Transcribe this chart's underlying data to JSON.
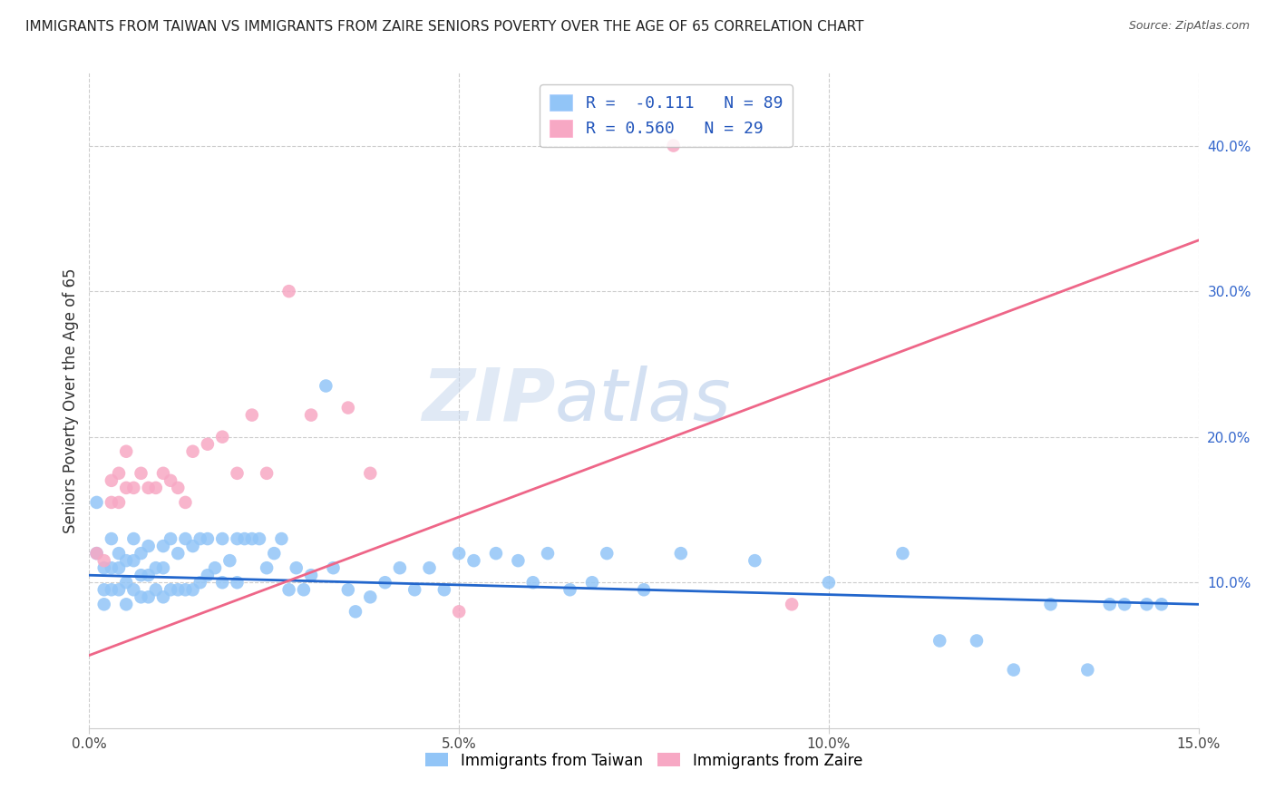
{
  "title": "IMMIGRANTS FROM TAIWAN VS IMMIGRANTS FROM ZAIRE SENIORS POVERTY OVER THE AGE OF 65 CORRELATION CHART",
  "source": "Source: ZipAtlas.com",
  "ylabel": "Seniors Poverty Over the Age of 65",
  "xlim": [
    0.0,
    0.15
  ],
  "ylim": [
    0.0,
    0.45
  ],
  "xticks": [
    0.0,
    0.05,
    0.1,
    0.15
  ],
  "xtick_labels": [
    "0.0%",
    "5.0%",
    "10.0%",
    "15.0%"
  ],
  "yticks": [
    0.1,
    0.2,
    0.3,
    0.4
  ],
  "ytick_labels": [
    "10.0%",
    "20.0%",
    "30.0%",
    "40.0%"
  ],
  "taiwan_color": "#92C5F7",
  "zaire_color": "#F7A8C4",
  "taiwan_line_color": "#2266CC",
  "zaire_line_color": "#EE6688",
  "taiwan_R": -0.111,
  "taiwan_N": 89,
  "zaire_R": 0.56,
  "zaire_N": 29,
  "taiwan_line_x0": 0.0,
  "taiwan_line_y0": 0.105,
  "taiwan_line_x1": 0.15,
  "taiwan_line_y1": 0.085,
  "zaire_line_x0": 0.0,
  "zaire_line_y0": 0.05,
  "zaire_line_x1": 0.15,
  "zaire_line_y1": 0.335,
  "legend_taiwan": "R =  -0.111   N = 89",
  "legend_zaire": "R = 0.560   N = 29",
  "legend_label_taiwan": "Immigrants from Taiwan",
  "legend_label_zaire": "Immigrants from Zaire",
  "watermark_zip": "ZIP",
  "watermark_atlas": "atlas",
  "taiwan_x": [
    0.001,
    0.001,
    0.002,
    0.002,
    0.002,
    0.003,
    0.003,
    0.003,
    0.004,
    0.004,
    0.004,
    0.005,
    0.005,
    0.005,
    0.006,
    0.006,
    0.006,
    0.007,
    0.007,
    0.007,
    0.008,
    0.008,
    0.008,
    0.009,
    0.009,
    0.01,
    0.01,
    0.01,
    0.011,
    0.011,
    0.012,
    0.012,
    0.013,
    0.013,
    0.014,
    0.014,
    0.015,
    0.015,
    0.016,
    0.016,
    0.017,
    0.018,
    0.018,
    0.019,
    0.02,
    0.02,
    0.021,
    0.022,
    0.023,
    0.024,
    0.025,
    0.026,
    0.027,
    0.028,
    0.029,
    0.03,
    0.032,
    0.033,
    0.035,
    0.036,
    0.038,
    0.04,
    0.042,
    0.044,
    0.046,
    0.048,
    0.05,
    0.052,
    0.055,
    0.058,
    0.06,
    0.062,
    0.065,
    0.068,
    0.07,
    0.075,
    0.08,
    0.09,
    0.1,
    0.11,
    0.115,
    0.12,
    0.125,
    0.13,
    0.135,
    0.138,
    0.14,
    0.143,
    0.145
  ],
  "taiwan_y": [
    0.155,
    0.12,
    0.11,
    0.095,
    0.085,
    0.13,
    0.11,
    0.095,
    0.12,
    0.11,
    0.095,
    0.115,
    0.1,
    0.085,
    0.13,
    0.115,
    0.095,
    0.12,
    0.105,
    0.09,
    0.125,
    0.105,
    0.09,
    0.11,
    0.095,
    0.125,
    0.11,
    0.09,
    0.13,
    0.095,
    0.12,
    0.095,
    0.13,
    0.095,
    0.125,
    0.095,
    0.13,
    0.1,
    0.13,
    0.105,
    0.11,
    0.13,
    0.1,
    0.115,
    0.13,
    0.1,
    0.13,
    0.13,
    0.13,
    0.11,
    0.12,
    0.13,
    0.095,
    0.11,
    0.095,
    0.105,
    0.235,
    0.11,
    0.095,
    0.08,
    0.09,
    0.1,
    0.11,
    0.095,
    0.11,
    0.095,
    0.12,
    0.115,
    0.12,
    0.115,
    0.1,
    0.12,
    0.095,
    0.1,
    0.12,
    0.095,
    0.12,
    0.115,
    0.1,
    0.12,
    0.06,
    0.06,
    0.04,
    0.085,
    0.04,
    0.085,
    0.085,
    0.085,
    0.085
  ],
  "zaire_x": [
    0.001,
    0.002,
    0.003,
    0.003,
    0.004,
    0.004,
    0.005,
    0.005,
    0.006,
    0.007,
    0.008,
    0.009,
    0.01,
    0.011,
    0.012,
    0.013,
    0.014,
    0.016,
    0.018,
    0.02,
    0.022,
    0.024,
    0.027,
    0.03,
    0.035,
    0.038,
    0.05,
    0.079,
    0.095
  ],
  "zaire_y": [
    0.12,
    0.115,
    0.17,
    0.155,
    0.175,
    0.155,
    0.19,
    0.165,
    0.165,
    0.175,
    0.165,
    0.165,
    0.175,
    0.17,
    0.165,
    0.155,
    0.19,
    0.195,
    0.2,
    0.175,
    0.215,
    0.175,
    0.3,
    0.215,
    0.22,
    0.175,
    0.08,
    0.4,
    0.085
  ]
}
